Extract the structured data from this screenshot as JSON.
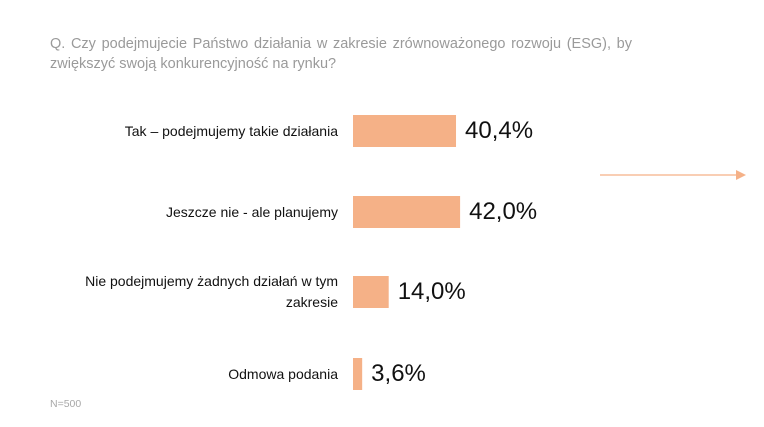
{
  "question": "Q. Czy podejmujecie Państwo działania w zakresie zrównoważonego rozwoju (ESG), by zwiększyć swoją konkurencyjność na rynku?",
  "note": "N=500",
  "colors": {
    "bar": "#f5b187",
    "arrow": "#f5b187",
    "question": "#9a9a9a"
  },
  "chart_data": {
    "type": "bar",
    "orientation": "horizontal",
    "categories": [
      "Tak – podejmujemy takie działania",
      "Jeszcze nie - ale planujemy",
      "Nie podejmujemy żadnych działań w tym zakresie",
      "Odmowa podania"
    ],
    "values": [
      40.4,
      42.0,
      14.0,
      3.6
    ],
    "value_labels": [
      "40,4%",
      "42,0%",
      "14,0%",
      "3,6%"
    ],
    "unit": "%",
    "grid": false,
    "legend": "none"
  }
}
